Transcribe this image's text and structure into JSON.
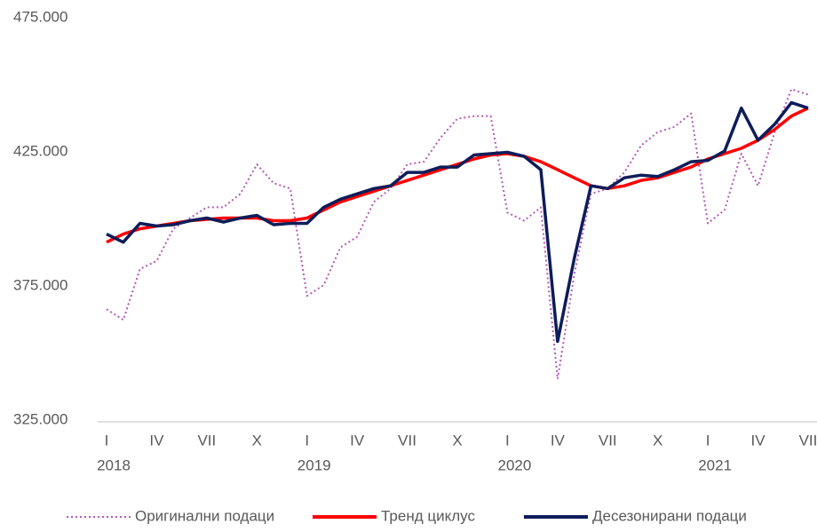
{
  "chart_data": {
    "type": "line",
    "categories": [
      "I",
      null,
      null,
      "IV",
      null,
      null,
      "VII",
      null,
      null,
      "X",
      null,
      null,
      "I",
      null,
      null,
      "IV",
      null,
      null,
      "VII",
      null,
      null,
      "X",
      null,
      null,
      "I",
      null,
      null,
      "IV",
      null,
      null,
      "VII",
      null,
      null,
      "X",
      null,
      null,
      "I",
      null,
      null,
      "IV",
      null,
      null,
      "VII"
    ],
    "years": [
      "2018",
      "2019",
      "2020",
      "2021"
    ],
    "ylim": [
      325000,
      475000
    ],
    "yticks": [
      {
        "value": 325000,
        "label": "325.000"
      },
      {
        "value": 375000,
        "label": "375.000"
      },
      {
        "value": 425000,
        "label": "425.000"
      },
      {
        "value": 475000,
        "label": "475.000"
      }
    ],
    "legend": "bottom",
    "series": [
      {
        "name": "Оригинални подаци",
        "color": "#b55ab9",
        "style": "dotted",
        "values": [
          367000,
          363000,
          382000,
          385000,
          397000,
          401000,
          405000,
          405000,
          410000,
          421000,
          414000,
          412000,
          372000,
          376000,
          390000,
          394000,
          407000,
          412000,
          421000,
          422000,
          431000,
          438000,
          439000,
          439000,
          403000,
          400000,
          405000,
          341000,
          380000,
          410000,
          412000,
          418000,
          428000,
          433000,
          435000,
          440000,
          399000,
          404000,
          425000,
          413000,
          433000,
          449000,
          447000
        ]
      },
      {
        "name": "Тренд циклус",
        "color": "#ff0000",
        "style": "solid",
        "values": [
          392000,
          395000,
          397000,
          398000,
          399000,
          400000,
          400500,
          401000,
          401000,
          401000,
          400000,
          400000,
          401000,
          404000,
          407000,
          409000,
          411000,
          413000,
          415000,
          417000,
          419000,
          421000,
          423000,
          424500,
          425000,
          424000,
          422000,
          419000,
          416000,
          413000,
          412000,
          413000,
          415000,
          416000,
          418000,
          420000,
          423000,
          425000,
          427000,
          430000,
          434000,
          439000,
          442000
        ]
      },
      {
        "name": "Десезонирани подаци",
        "color": "#0d1d5a",
        "style": "solid",
        "values": [
          395000,
          392000,
          399000,
          398000,
          398500,
          400000,
          401000,
          399500,
          401000,
          402000,
          398500,
          399000,
          399000,
          405000,
          408000,
          410000,
          412000,
          413000,
          418000,
          418000,
          420000,
          420000,
          424500,
          425000,
          425500,
          424000,
          419000,
          355000,
          386000,
          413000,
          412000,
          416000,
          417000,
          416500,
          419000,
          422000,
          422500,
          426000,
          442000,
          430000,
          436000,
          444000,
          442000
        ]
      }
    ]
  }
}
